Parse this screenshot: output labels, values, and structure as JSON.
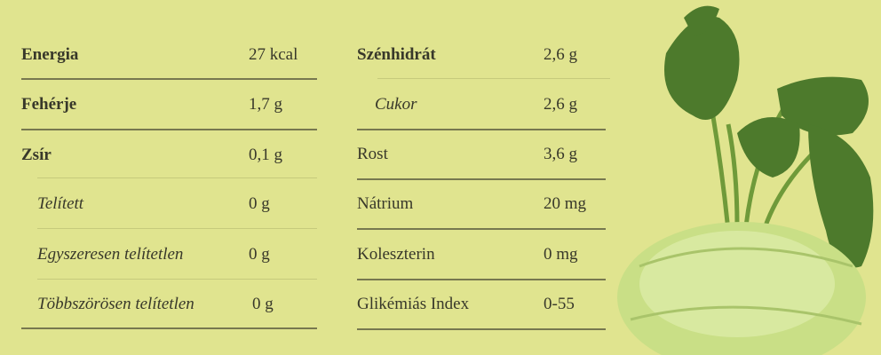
{
  "left_column": [
    {
      "label": "Energia",
      "value": "27 kcal",
      "style": "bold"
    },
    {
      "label": "Fehérje",
      "value": "1,7 g",
      "style": "bold"
    },
    {
      "label": "Zsír",
      "value": "0,1 g",
      "style": "bold"
    },
    {
      "label": "Telített",
      "value": "0 g",
      "style": "italic-indented"
    },
    {
      "label": "Egyszeresen telítetlen",
      "value": "0 g",
      "style": "italic-indented"
    },
    {
      "label": "Többszörösen telítetlen",
      "value": "0 g",
      "style": "italic-indented"
    }
  ],
  "right_column": [
    {
      "label": "Szénhidrát",
      "value": "2,6 g",
      "style": "bold"
    },
    {
      "label": "Cukor",
      "value": "2,6 g",
      "style": "italic-indented"
    },
    {
      "label": "Rost",
      "value": "3,6 g",
      "style": "regular"
    },
    {
      "label": "Nátrium",
      "value": "20 mg",
      "style": "regular"
    },
    {
      "label": "Koleszterin",
      "value": "0 mg",
      "style": "regular"
    },
    {
      "label": "Glikémiás Index",
      "value": "0-55",
      "style": "regular"
    }
  ],
  "image": {
    "subject": "kohlrabi"
  },
  "colors": {
    "background": "#e0e48f",
    "text": "#38382a"
  }
}
